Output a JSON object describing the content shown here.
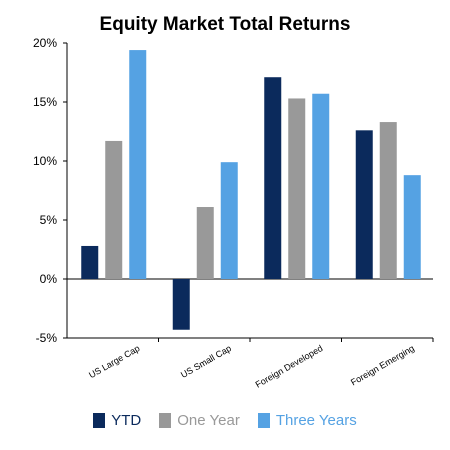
{
  "chart_data": {
    "type": "bar",
    "title": "Equity Market Total Returns",
    "xlabel": "",
    "ylabel": "",
    "categories": [
      "US Large Cap",
      "US Small Cap",
      "Foreign Developed",
      "Foreign Emerging"
    ],
    "series": [
      {
        "name": "YTD",
        "color": "#0b2a5c",
        "values": [
          2.8,
          -4.3,
          17.1,
          12.6
        ]
      },
      {
        "name": "One Year",
        "color": "#999999",
        "values": [
          11.7,
          6.1,
          15.3,
          13.3
        ]
      },
      {
        "name": "Three Years",
        "color": "#55a2e3",
        "values": [
          19.4,
          9.9,
          15.7,
          8.8
        ]
      }
    ],
    "ylim": [
      -5,
      20
    ],
    "yticks": [
      -5,
      0,
      5,
      10,
      15,
      20
    ],
    "ytick_labels": [
      "-5%",
      "0%",
      "5%",
      "10%",
      "15%",
      "20%"
    ],
    "grid": false,
    "legend_position": "bottom"
  }
}
